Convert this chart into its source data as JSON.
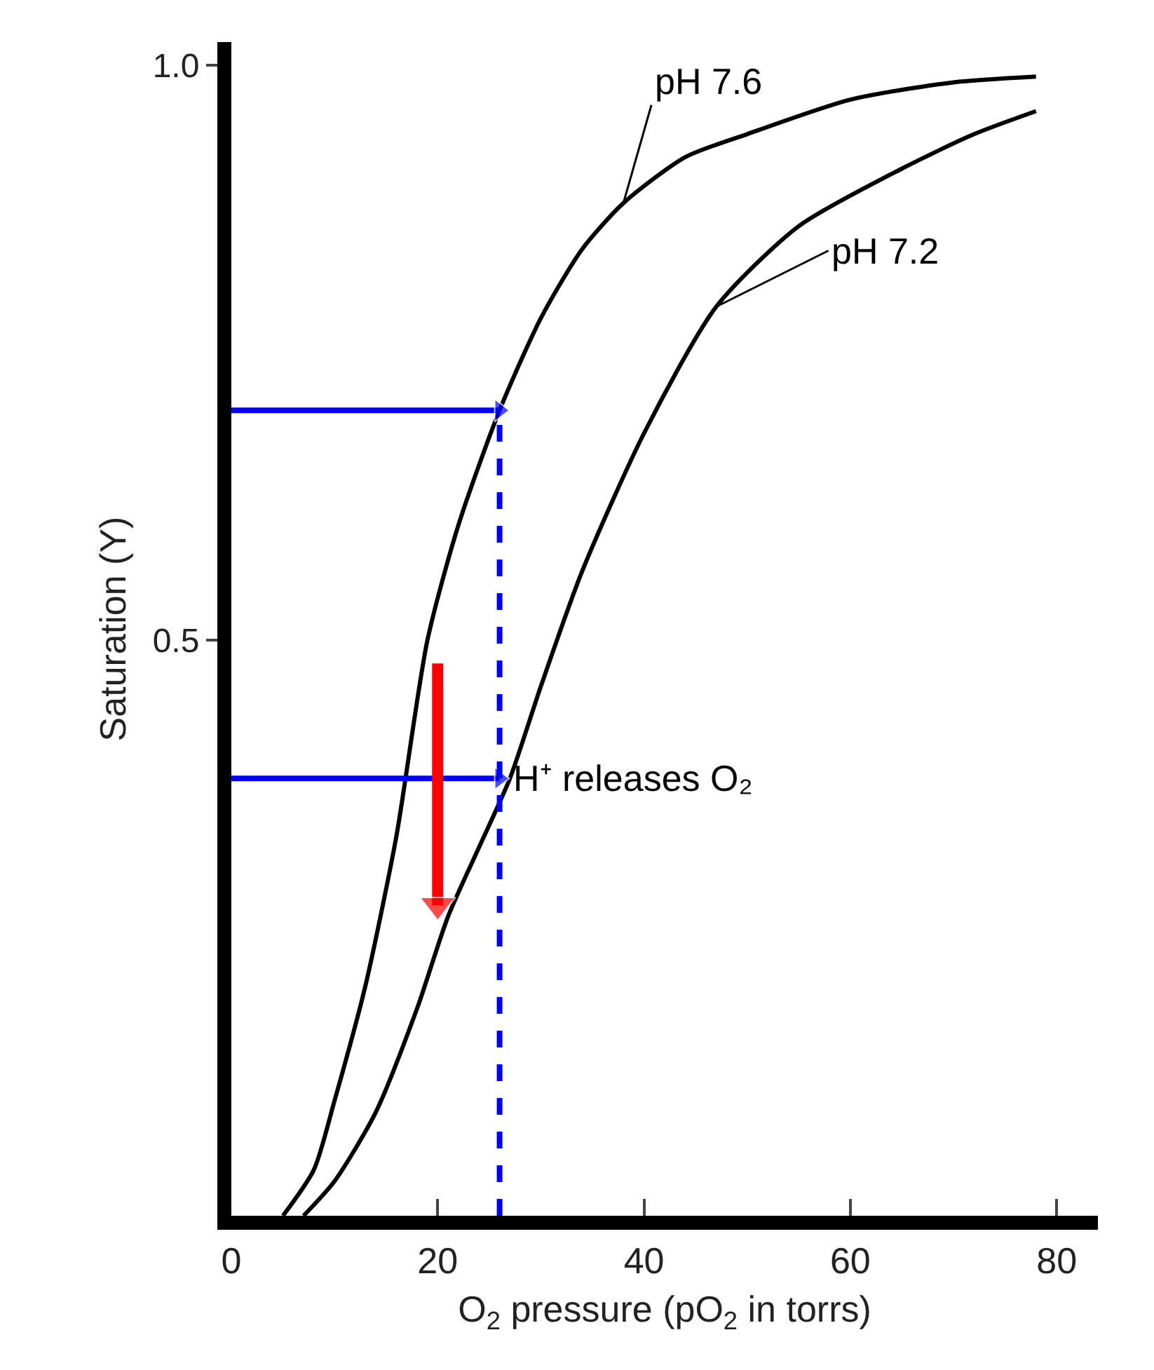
{
  "chart_data": {
    "type": "line",
    "xlabel": "O$_{2}$ pressure (pO$_{2}$ in torrs)",
    "ylabel": "Saturation (Y)",
    "xlim": [
      0,
      84
    ],
    "ylim": [
      0,
      1.02
    ],
    "xticks": [
      0,
      20,
      40,
      60,
      80
    ],
    "yticks": [
      0.5,
      {
        "value": 1,
        "label": "1.0"
      }
    ],
    "series": [
      {
        "color": "#000000",
        "x": [
          5,
          8,
          10,
          13,
          16,
          19,
          22,
          26,
          30,
          34,
          38,
          44,
          50,
          60,
          70,
          78
        ],
        "values": [
          0,
          0.04,
          0.1,
          0.2,
          0.33,
          0.5,
          0.6,
          0.7,
          0.78,
          0.84,
          0.88,
          0.92,
          0.94,
          0.97,
          0.985,
          0.99
        ]
      },
      {
        "color": "#000000",
        "x": [
          7,
          10,
          14,
          18,
          21,
          24,
          27,
          30,
          34,
          40,
          47,
          55,
          65,
          72,
          78
        ],
        "values": [
          0,
          0.03,
          0.09,
          0.18,
          0.26,
          0.32,
          0.38,
          0.46,
          0.56,
          0.68,
          0.79,
          0.86,
          0.91,
          0.94,
          0.96
        ]
      },
      {
        "color": "#0000ff",
        "x": [
          0,
          26
        ],
        "values": [
          0.7,
          0.7
        ],
        "marker": "triangle"
      },
      {
        "color": "#0000ff",
        "x": [
          0,
          26
        ],
        "values": [
          0.38,
          0.38
        ],
        "marker": "triangle"
      },
      {
        "color": "#0000ff",
        "x": [
          26,
          26
        ],
        "values": [
          0,
          0.7
        ],
        "line_style": "dashed"
      },
      {
        "color": "#ff0000",
        "x": [
          20,
          20
        ],
        "values": [
          0.48,
          0.27
        ],
        "marker": "triangle"
      }
    ],
    "annotations": [
      {
        "text": "pH 7.6",
        "x": 38,
        "y": 0.88
      },
      {
        "text": "pH 7.2",
        "x": 47,
        "y": 0.79
      },
      {
        "text": "H⁺ releases O₂",
        "x": 27,
        "y": 0.38
      }
    ]
  }
}
